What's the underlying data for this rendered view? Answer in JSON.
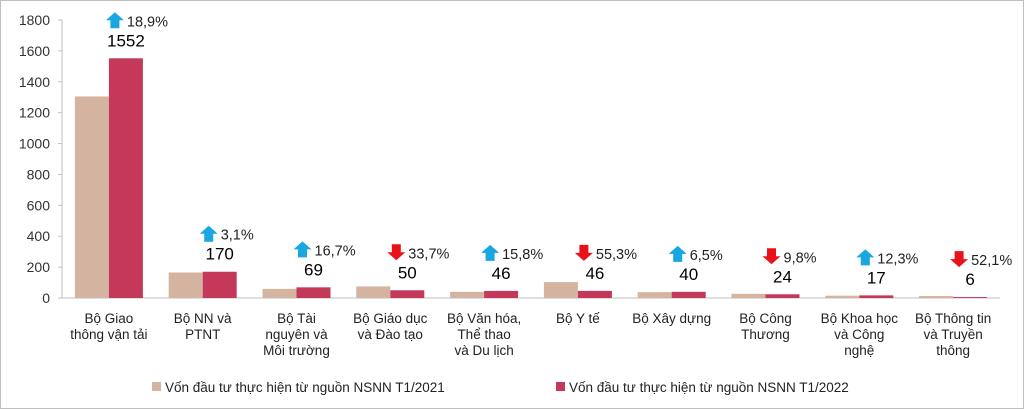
{
  "chart_data": {
    "type": "bar",
    "title": "",
    "xlabel": "",
    "ylabel": "",
    "ylim": [
      0,
      1800
    ],
    "yticks": [
      0,
      200,
      400,
      600,
      800,
      1000,
      1200,
      1400,
      1600,
      1800
    ],
    "grid": false,
    "legend_position": "bottom",
    "categories": [
      [
        "Bộ Giao",
        "thông vận tải"
      ],
      [
        "Bộ NN và",
        "PTNT"
      ],
      [
        "Bộ Tài",
        "nguyên và",
        "Môi trường"
      ],
      [
        "Bộ Giáo dục",
        "và Đào tạo"
      ],
      [
        "Bộ Văn hóa,",
        "Thể thao",
        "và Du lịch"
      ],
      [
        "Bộ Y tế"
      ],
      [
        "Bộ Xây dựng"
      ],
      [
        "Bộ Công",
        "Thương"
      ],
      [
        "Bộ Khoa học",
        "và Công",
        "nghệ"
      ],
      [
        "Bộ Thông tin",
        "và Truyền",
        "thông"
      ]
    ],
    "series": [
      {
        "name": "Vốn đầu tư thực hiện từ nguồn NSNN T1/2021",
        "color": "#d4b3a1",
        "values": [
          1305,
          165,
          59,
          75,
          40,
          103,
          38,
          27,
          15,
          13
        ]
      },
      {
        "name": "Vốn đầu tư thực hiện từ nguồn NSNN T1/2022",
        "color": "#c4385a",
        "values": [
          1552,
          170,
          69,
          50,
          46,
          46,
          40,
          24,
          17,
          6
        ]
      }
    ],
    "value_labels": [
      "1552",
      "170",
      "69",
      "50",
      "46",
      "46",
      "40",
      "24",
      "17",
      "6"
    ],
    "changes": [
      {
        "direction": "up",
        "text": "18,9%"
      },
      {
        "direction": "up",
        "text": "3,1%"
      },
      {
        "direction": "up",
        "text": "16,7%"
      },
      {
        "direction": "down",
        "text": "33,7%"
      },
      {
        "direction": "up",
        "text": "15,8%"
      },
      {
        "direction": "down",
        "text": "55,3%"
      },
      {
        "direction": "up",
        "text": "6,5%"
      },
      {
        "direction": "down",
        "text": "9,8%"
      },
      {
        "direction": "up",
        "text": "12,3%"
      },
      {
        "direction": "down",
        "text": "52,1%"
      }
    ],
    "arrow_colors": {
      "up": "#18a7e0",
      "down": "#e8121b"
    }
  }
}
